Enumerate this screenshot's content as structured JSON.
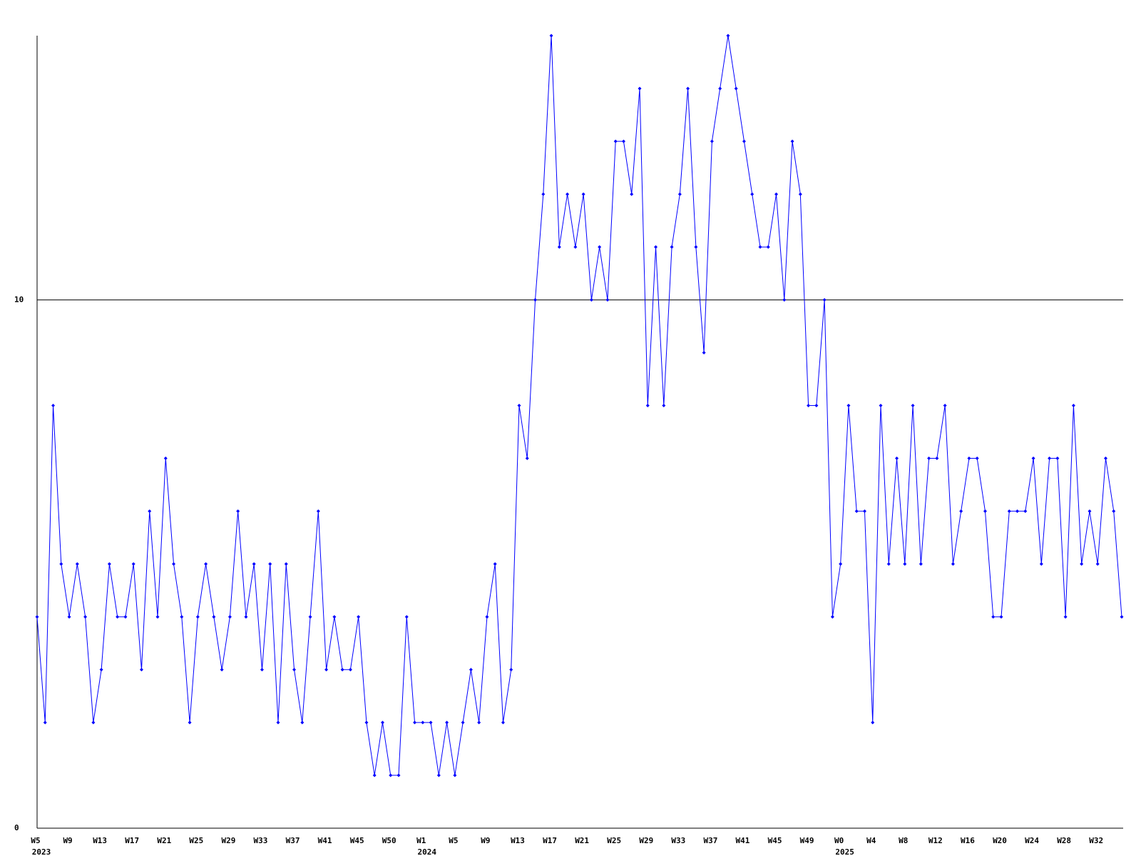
{
  "chart_data": {
    "type": "line",
    "categories": [
      {
        "label": "W5",
        "year": "2023"
      },
      null,
      null,
      null,
      "W9",
      null,
      null,
      null,
      "W13",
      null,
      null,
      null,
      "W17",
      null,
      null,
      null,
      "W21",
      null,
      null,
      null,
      "W25",
      null,
      null,
      null,
      "W29",
      null,
      null,
      null,
      "W33",
      null,
      null,
      null,
      "W37",
      null,
      null,
      null,
      "W41",
      null,
      null,
      null,
      "W45",
      null,
      null,
      null,
      "W50",
      null,
      null,
      null,
      {
        "label": "W1",
        "year": "2024"
      },
      null,
      null,
      null,
      "W5",
      null,
      null,
      null,
      "W9",
      null,
      null,
      null,
      "W13",
      null,
      null,
      null,
      "W17",
      null,
      null,
      null,
      "W21",
      null,
      null,
      null,
      "W25",
      null,
      null,
      null,
      "W29",
      null,
      null,
      null,
      "W33",
      null,
      null,
      null,
      "W37",
      null,
      null,
      null,
      "W41",
      null,
      null,
      null,
      "W45",
      null,
      null,
      null,
      "W49",
      null,
      null,
      null,
      {
        "label": "W0",
        "year": "2025"
      },
      null,
      null,
      null,
      "W4",
      null,
      null,
      null,
      "W8",
      null,
      null,
      null,
      "W12",
      null,
      null,
      null,
      "W16",
      null,
      null,
      null,
      "W20",
      null,
      null,
      null,
      "W24",
      null,
      null,
      null,
      "W28",
      null,
      null,
      null,
      "W32",
      null,
      null,
      null
    ],
    "series": [
      {
        "color": "#0000ff",
        "values": [
          4,
          2,
          8,
          5,
          4,
          5,
          4,
          2,
          3,
          5,
          4,
          4,
          5,
          3,
          6,
          4,
          7,
          5,
          4,
          2,
          4,
          5,
          4,
          3,
          4,
          6,
          4,
          5,
          3,
          5,
          2,
          5,
          3,
          2,
          4,
          6,
          3,
          4,
          3,
          3,
          4,
          2,
          1,
          2,
          1,
          1,
          4,
          2,
          2,
          2,
          1,
          2,
          1,
          2,
          3,
          2,
          4,
          5,
          2,
          3,
          8,
          7,
          10,
          12,
          15,
          11,
          12,
          11,
          12,
          10,
          11,
          10,
          13,
          13,
          12,
          14,
          8,
          11,
          8,
          11,
          12,
          14,
          11,
          9,
          13,
          14,
          15,
          14,
          13,
          12,
          11,
          11,
          12,
          10,
          13,
          12,
          8,
          8,
          10,
          4,
          5,
          8,
          6,
          6,
          2,
          8,
          5,
          7,
          5,
          8,
          5,
          7,
          7,
          8,
          5,
          6,
          7,
          7,
          6,
          4,
          4,
          6,
          6,
          6,
          7,
          5,
          7,
          7,
          4,
          8,
          5,
          6,
          5,
          7,
          6,
          4
        ]
      }
    ],
    "ylim": [
      0,
      15
    ],
    "yticks": [
      0,
      10
    ],
    "grid": true
  }
}
